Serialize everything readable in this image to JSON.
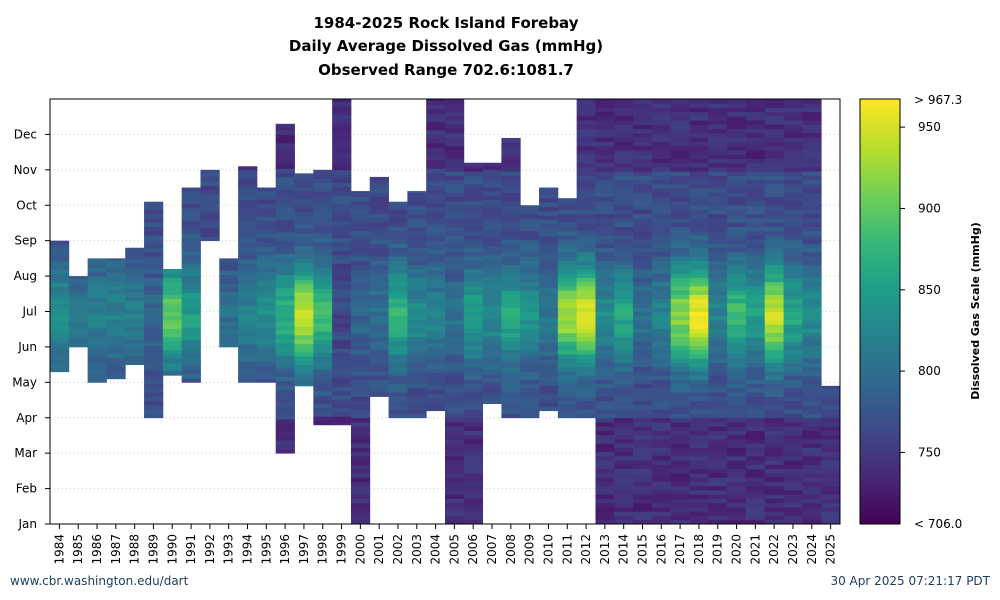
{
  "chart_data": {
    "type": "heatmap",
    "title": [
      "1984-2025 Rock Island Forebay",
      "Daily Average Dissolved Gas (mmHg)",
      "Observed Range 702.6:1081.7"
    ],
    "x_categories": [
      "1984",
      "1985",
      "1986",
      "1987",
      "1988",
      "1989",
      "1990",
      "1991",
      "1992",
      "1993",
      "1994",
      "1995",
      "1996",
      "1997",
      "1998",
      "1999",
      "2000",
      "2001",
      "2002",
      "2003",
      "2004",
      "2005",
      "2006",
      "2007",
      "2008",
      "2009",
      "2010",
      "2011",
      "2012",
      "2013",
      "2014",
      "2015",
      "2016",
      "2017",
      "2018",
      "2019",
      "2020",
      "2021",
      "2022",
      "2023",
      "2024",
      "2025"
    ],
    "y_ticks": [
      "Jan",
      "Feb",
      "Mar",
      "Apr",
      "May",
      "Jun",
      "Jul",
      "Aug",
      "Sep",
      "Oct",
      "Nov",
      "Dec"
    ],
    "y_axis": "day of year, Jan (bottom) to Dec (top)",
    "colorbar": {
      "label": "Dissolved Gas Scale (mmHg)",
      "min": 706.0,
      "max": 967.3,
      "min_label": "< 706.0",
      "max_label": "> 967.3",
      "ticks": [
        750,
        800,
        850,
        900,
        950
      ],
      "colormap": "viridis"
    },
    "grid": "dotted horizontal at month ticks",
    "year_coverage": [
      {
        "year": "1984",
        "start_month": 4.3,
        "end_month": 8.0,
        "peak_mmHg": 840
      },
      {
        "year": "1985",
        "start_month": 5.0,
        "end_month": 7.0,
        "peak_mmHg": 810
      },
      {
        "year": "1986",
        "start_month": 4.0,
        "end_month": 7.5,
        "peak_mmHg": 820
      },
      {
        "year": "1987",
        "start_month": 4.1,
        "end_month": 7.5,
        "peak_mmHg": 820
      },
      {
        "year": "1988",
        "start_month": 4.5,
        "end_month": 7.8,
        "peak_mmHg": 815
      },
      {
        "year": "1989",
        "start_month": 3.0,
        "end_month": 9.1,
        "peak_mmHg": 790
      },
      {
        "year": "1990",
        "start_month": 4.2,
        "end_month": 7.2,
        "peak_mmHg": 900
      },
      {
        "year": "1991",
        "start_month": 4.0,
        "end_month": 9.5,
        "peak_mmHg": 850
      },
      {
        "year": "1992",
        "start_month": 8.0,
        "end_month": 10.0,
        "peak_mmHg": 750
      },
      {
        "year": "1993",
        "start_month": 5.0,
        "end_month": 7.5,
        "peak_mmHg": 800
      },
      {
        "year": "1994",
        "start_month": 4.0,
        "end_month": 10.1,
        "peak_mmHg": 820
      },
      {
        "year": "1995",
        "start_month": 4.0,
        "end_month": 9.5,
        "peak_mmHg": 830
      },
      {
        "year": "1996",
        "start_month": 2.0,
        "end_month": 11.3,
        "peak_mmHg": 870
      },
      {
        "year": "1997",
        "start_month": 3.9,
        "end_month": 9.9,
        "peak_mmHg": 940
      },
      {
        "year": "1998",
        "start_month": 2.8,
        "end_month": 10.0,
        "peak_mmHg": 880
      },
      {
        "year": "1999",
        "start_month": 2.8,
        "end_month": 12.0,
        "peak_mmHg": 760
      },
      {
        "year": "2000",
        "start_month": 0.0,
        "end_month": 9.4,
        "peak_mmHg": 790
      },
      {
        "year": "2001",
        "start_month": 3.6,
        "end_month": 9.8,
        "peak_mmHg": 800
      },
      {
        "year": "2002",
        "start_month": 3.0,
        "end_month": 9.1,
        "peak_mmHg": 870
      },
      {
        "year": "2003",
        "start_month": 3.0,
        "end_month": 9.4,
        "peak_mmHg": 830
      },
      {
        "year": "2004",
        "start_month": 3.2,
        "end_month": 12.0,
        "peak_mmHg": 820
      },
      {
        "year": "2005",
        "start_month": 0.0,
        "end_month": 12.0,
        "peak_mmHg": 800
      },
      {
        "year": "2006",
        "start_month": 0.0,
        "end_month": 10.2,
        "peak_mmHg": 850
      },
      {
        "year": "2007",
        "start_month": 3.4,
        "end_month": 10.2,
        "peak_mmHg": 830
      },
      {
        "year": "2008",
        "start_month": 3.0,
        "end_month": 10.9,
        "peak_mmHg": 860
      },
      {
        "year": "2009",
        "start_month": 3.0,
        "end_month": 9.0,
        "peak_mmHg": 840
      },
      {
        "year": "2010",
        "start_month": 3.2,
        "end_month": 9.5,
        "peak_mmHg": 810
      },
      {
        "year": "2011",
        "start_month": 3.0,
        "end_month": 9.2,
        "peak_mmHg": 930
      },
      {
        "year": "2012",
        "start_month": 3.0,
        "end_month": 12.0,
        "peak_mmHg": 950
      },
      {
        "year": "2013",
        "start_month": 0.0,
        "end_month": 12.0,
        "peak_mmHg": 830
      },
      {
        "year": "2014",
        "start_month": 0.0,
        "end_month": 12.0,
        "peak_mmHg": 860
      },
      {
        "year": "2015",
        "start_month": 0.0,
        "end_month": 12.0,
        "peak_mmHg": 800
      },
      {
        "year": "2016",
        "start_month": 0.0,
        "end_month": 12.0,
        "peak_mmHg": 820
      },
      {
        "year": "2017",
        "start_month": 0.0,
        "end_month": 12.0,
        "peak_mmHg": 920
      },
      {
        "year": "2018",
        "start_month": 0.0,
        "end_month": 12.0,
        "peak_mmHg": 960
      },
      {
        "year": "2019",
        "start_month": 0.0,
        "end_month": 12.0,
        "peak_mmHg": 820
      },
      {
        "year": "2020",
        "start_month": 0.0,
        "end_month": 12.0,
        "peak_mmHg": 880
      },
      {
        "year": "2021",
        "start_month": 0.0,
        "end_month": 12.0,
        "peak_mmHg": 850
      },
      {
        "year": "2022",
        "start_month": 0.0,
        "end_month": 12.0,
        "peak_mmHg": 940
      },
      {
        "year": "2023",
        "start_month": 0.0,
        "end_month": 12.0,
        "peak_mmHg": 860
      },
      {
        "year": "2024",
        "start_month": 0.0,
        "end_month": 12.0,
        "peak_mmHg": 830
      },
      {
        "year": "2025",
        "start_month": 0.0,
        "end_month": 3.9,
        "peak_mmHg": 790
      }
    ]
  },
  "footer": {
    "left": "www.cbr.washington.edu/dart",
    "right": "30 Apr 2025 07:21:17 PDT"
  }
}
